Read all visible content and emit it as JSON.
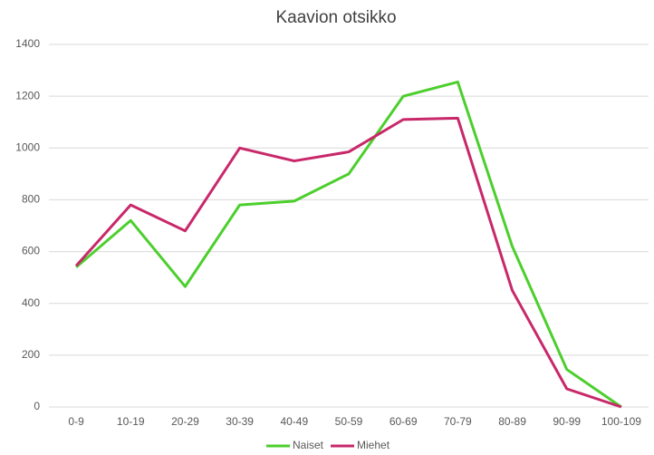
{
  "chart_data": {
    "type": "line",
    "title": "Kaavion otsikko",
    "categories": [
      "0-9",
      "10-19",
      "20-29",
      "30-39",
      "40-49",
      "50-59",
      "60-69",
      "70-79",
      "80-89",
      "90-99",
      "100-109"
    ],
    "series": [
      {
        "name": "Naiset",
        "color": "#4ccf2d",
        "values": [
          540,
          720,
          465,
          780,
          795,
          900,
          1200,
          1255,
          620,
          145,
          0
        ]
      },
      {
        "name": "Miehet",
        "color": "#c8286a",
        "values": [
          545,
          780,
          680,
          1000,
          950,
          985,
          1110,
          1115,
          450,
          70,
          0
        ]
      }
    ],
    "ylim": [
      0,
      1400
    ],
    "yticks": [
      0,
      200,
      400,
      600,
      800,
      1000,
      1200,
      1400
    ],
    "grid": true,
    "legend": "bottom"
  }
}
